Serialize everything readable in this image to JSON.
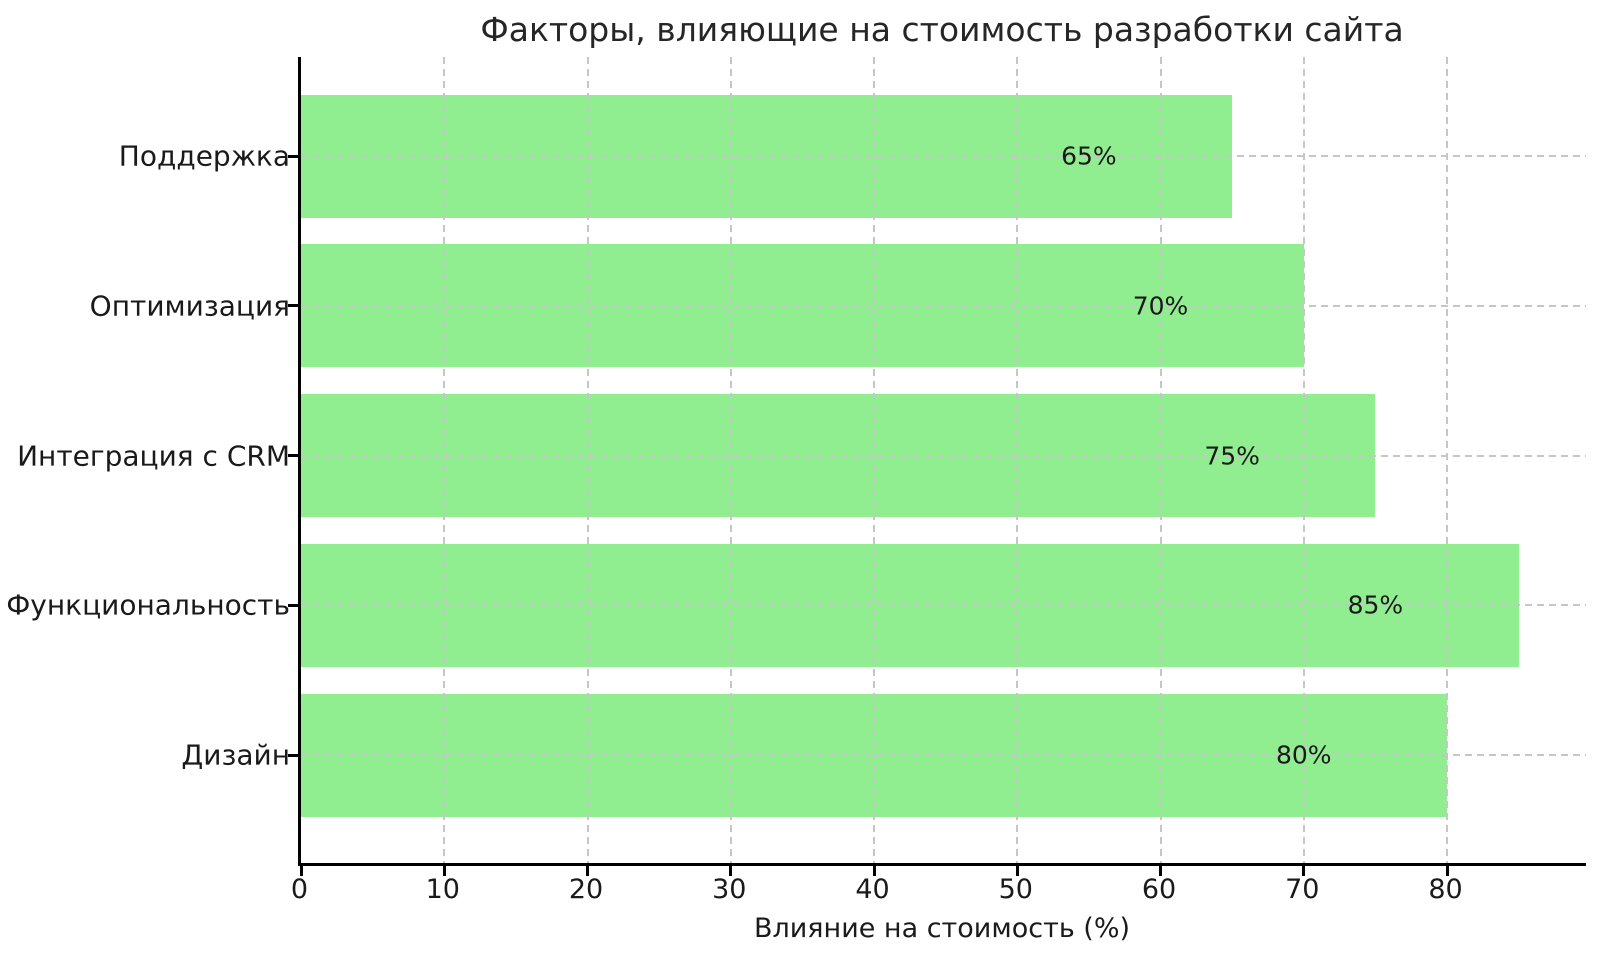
{
  "chart_data": {
    "type": "bar",
    "orientation": "horizontal",
    "title": "Факторы, влияющие на стоимость разработки сайта",
    "xlabel": "Влияние на стоимость (%)",
    "ylabel": "",
    "categories": [
      "Поддержка",
      "Оптимизация",
      "Интеграция с CRM",
      "Функциональность",
      "Дизайн"
    ],
    "values": [
      65,
      70,
      75,
      85,
      80
    ],
    "value_labels": [
      "65%",
      "70%",
      "75%",
      "85%",
      "80%"
    ],
    "xticks": [
      0,
      10,
      20,
      30,
      40,
      50,
      60,
      70,
      80
    ],
    "xlim": [
      0,
      89.7
    ],
    "grid": true,
    "grid_style": "dashed, both axes, drawn over bars",
    "legend": false,
    "colors": {
      "bar": "#90ee90",
      "grid": "#c6c6c6",
      "spine": "#000000",
      "text": "#1a1a1a",
      "background": "#ffffff"
    }
  }
}
